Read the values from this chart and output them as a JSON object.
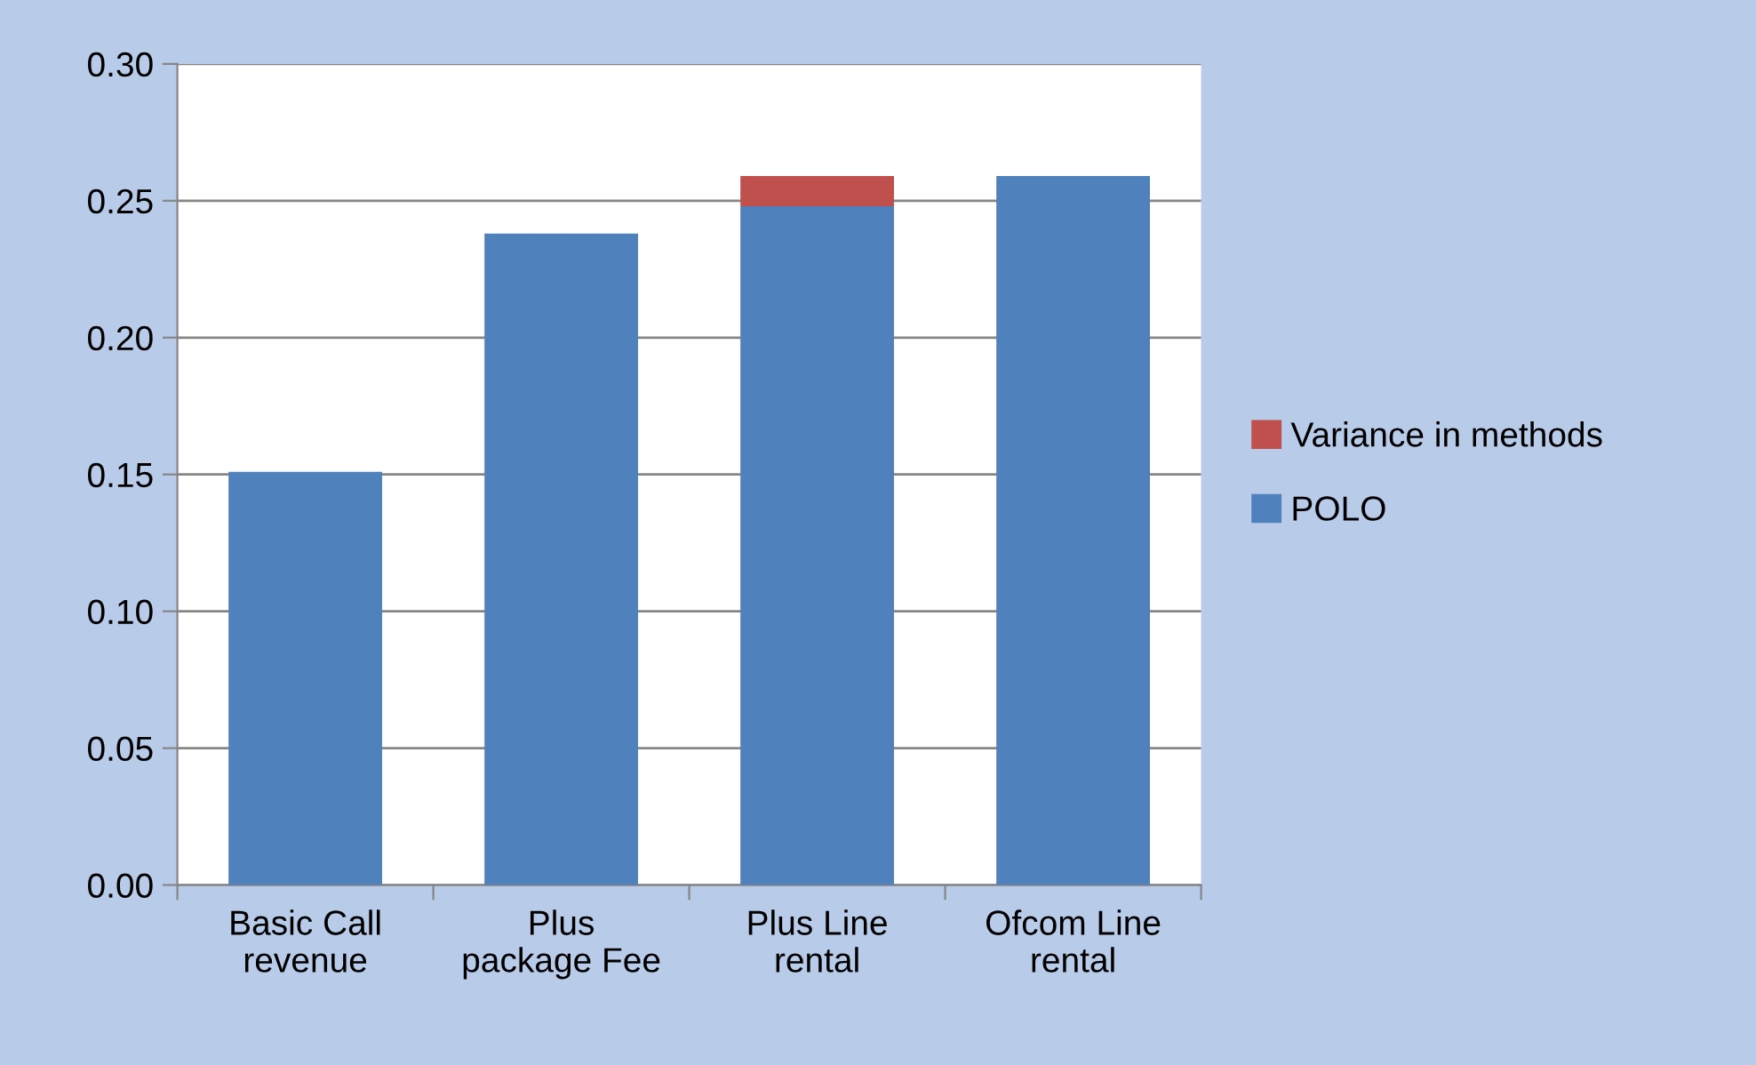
{
  "chart_data": {
    "type": "bar",
    "stacked": true,
    "categories": [
      "Basic Call\nrevenue",
      "Plus\npackage Fee",
      "Plus Line\nrental",
      "Ofcom Line\nrental"
    ],
    "series": [
      {
        "name": "POLO",
        "color": "#4f81bd",
        "values": [
          0.151,
          0.238,
          0.248,
          0.259
        ]
      },
      {
        "name": "Variance in methods",
        "color": "#c0504d",
        "values": [
          null,
          null,
          0.011,
          null
        ]
      }
    ],
    "ylim": [
      0,
      0.3
    ],
    "yticks": [
      {
        "value": 0,
        "label": "0.00"
      },
      {
        "value": 0.05,
        "label": "0.05"
      },
      {
        "value": 0.1,
        "label": "0.10"
      },
      {
        "value": 0.15,
        "label": "0.15"
      },
      {
        "value": 0.2,
        "label": "0.20"
      },
      {
        "value": 0.25,
        "label": "0.25"
      },
      {
        "value": 0.3,
        "label": "0.30"
      }
    ],
    "grid": "y",
    "legend": "right"
  }
}
